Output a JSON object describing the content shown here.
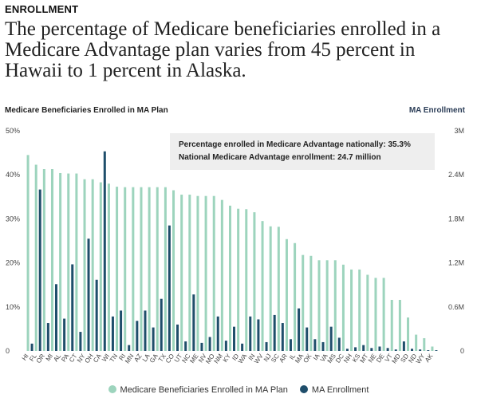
{
  "header": {
    "eyebrow": "ENROLLMENT",
    "title": "The percentage of Medicare beneficiaries enrolled in a Medicare Advantage plan varies from 45 percent in Hawaii to 1 percent in Alaska."
  },
  "colors": {
    "percent_bar": "#9dd4bd",
    "enrollment_bar": "#1f4e6b",
    "note_bg": "#eeeeee"
  },
  "chart_data": {
    "type": "bar",
    "left_axis_label": "Medicare Beneficiaries Enrolled in MA Plan",
    "right_axis_label": "MA Enrollment",
    "left_ticks": [
      "0",
      "10%",
      "20%",
      "30%",
      "40%",
      "50%"
    ],
    "right_ticks": [
      "0",
      "0.6M",
      "1.2M",
      "1.8M",
      "2.4M",
      "3M"
    ],
    "ylim_left": [
      0,
      50
    ],
    "ylim_right": [
      0,
      3
    ],
    "grid": false,
    "legend_position": "bottom",
    "annotations": [
      "Percentage enrolled in Medicare Advantage nationally: 35.3%",
      "National Medicare Advantage enrollment: 24.7 million"
    ],
    "categories": [
      "HI",
      "FL",
      "OR",
      "MI",
      "AL",
      "PA",
      "CT",
      "NY",
      "OH",
      "CA",
      "WI",
      "TN",
      "RI",
      "MN",
      "AZ",
      "LA",
      "GA",
      "TX",
      "CO",
      "UT",
      "NC",
      "ME",
      "NV",
      "MO",
      "NM",
      "KY",
      "ID",
      "WA",
      "IN",
      "WV",
      "NJ",
      "SC",
      "AR",
      "IL",
      "MA",
      "OK",
      "IA",
      "VA",
      "MS",
      "DC",
      "NH",
      "KS",
      "MT",
      "NE",
      "DE",
      "VT",
      "MD",
      "SD",
      "ND",
      "WY",
      "AK"
    ],
    "series": [
      {
        "name": "Medicare Beneficiaries Enrolled in MA Plan",
        "axis": "left",
        "values": [
          44.5,
          42.3,
          41.3,
          41.3,
          40.4,
          40.3,
          40.3,
          39,
          39,
          38.3,
          38,
          37.3,
          37.2,
          37.2,
          37.2,
          37.2,
          37.2,
          37.2,
          36.5,
          35.5,
          35.5,
          35.2,
          35.2,
          35.2,
          34.3,
          33,
          32.3,
          32.2,
          31.5,
          29.5,
          28.3,
          28.2,
          25.4,
          24.5,
          21.8,
          21.6,
          20.6,
          20.6,
          20.6,
          19.6,
          18.5,
          18.5,
          17.3,
          16.6,
          16.6,
          11.6,
          11.6,
          7.6,
          3.7,
          2.9,
          1
        ]
      },
      {
        "name": "MA Enrollment",
        "axis": "right",
        "values": [
          0.1,
          2.2,
          0.38,
          0.91,
          0.44,
          1.18,
          0.26,
          1.53,
          0.97,
          2.72,
          0.47,
          0.55,
          0.08,
          0.41,
          0.55,
          0.32,
          0.71,
          1.71,
          0.36,
          0.13,
          0.77,
          0.11,
          0.19,
          0.47,
          0.14,
          0.33,
          0.1,
          0.47,
          0.43,
          0.12,
          0.49,
          0.38,
          0.16,
          0.58,
          0.32,
          0.16,
          0.12,
          0.33,
          0.18,
          0.03,
          0.05,
          0.08,
          0.04,
          0.06,
          0.04,
          0.02,
          0.13,
          0.03,
          0.02,
          0.01,
          0.01
        ]
      }
    ]
  },
  "legend": {
    "percent_label": "Medicare Beneficiaries Enrolled in MA Plan",
    "enrollment_label": "MA Enrollment"
  }
}
